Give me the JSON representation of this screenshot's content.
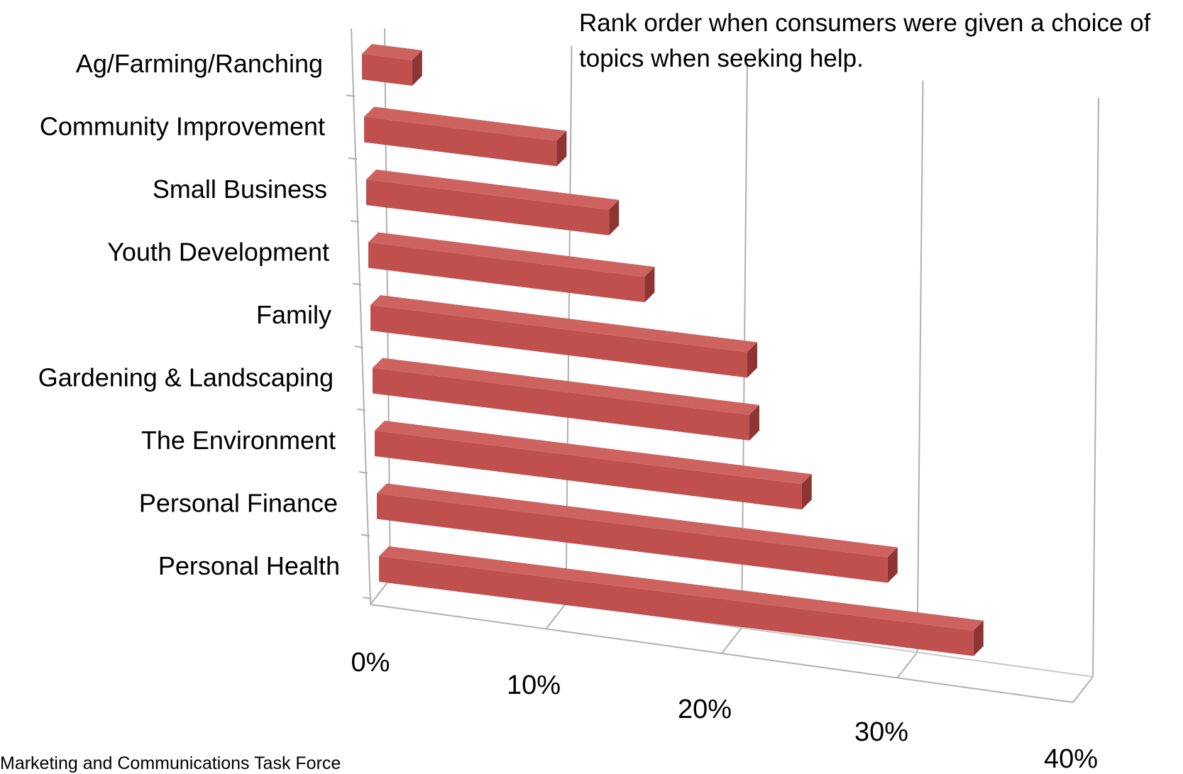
{
  "chart_data": {
    "type": "bar",
    "orientation": "horizontal",
    "perspective": "3d",
    "annotation": "Rank order when consumers were given a choice of topics when seeking help.",
    "categories": [
      "Ag/Farming/Ranching",
      "Community Improvement",
      "Small Business",
      "Youth Development",
      "Family",
      "Gardening & Landscaping",
      "The Environment",
      "Personal Finance",
      "Personal Health"
    ],
    "values": [
      3,
      11.5,
      14.5,
      16.5,
      22.5,
      22.5,
      25.5,
      30.5,
      35.5
    ],
    "unit": "%",
    "xlim": [
      0,
      40
    ],
    "xticks": [
      "0%",
      "10%",
      "20%",
      "30%",
      "40%"
    ],
    "xtick_values": [
      0,
      10,
      20,
      30,
      40
    ],
    "grid": true,
    "legend": "none",
    "bar_color": "#c0504d",
    "bar_side_color": "#8e3533"
  },
  "footer": {
    "text": "Marketing and Communications Task Force"
  }
}
